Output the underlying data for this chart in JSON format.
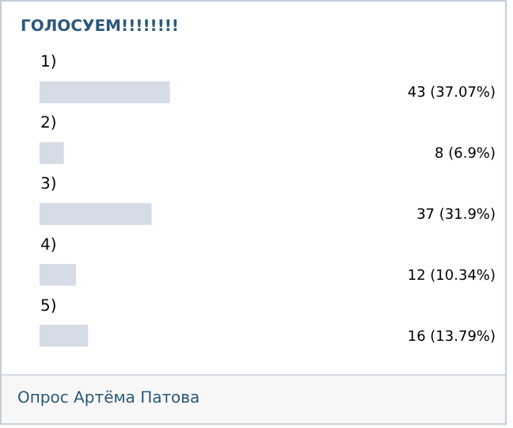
{
  "chart_data": {
    "type": "bar",
    "orientation": "horizontal",
    "title": "ГОЛОСУЕМ!!!!!!!!",
    "categories": [
      "1)",
      "2)",
      "3)",
      "4)",
      "5)"
    ],
    "values": [
      43,
      8,
      37,
      12,
      16
    ],
    "value_labels": [
      "43 (37.07%)",
      "8 (6.9%)",
      "37 (31.9%)",
      "12 (10.34%)",
      "16 (13.79%)"
    ],
    "color": "#d5dce6",
    "annotations": [
      "Опрос Артёма Патова"
    ]
  }
}
